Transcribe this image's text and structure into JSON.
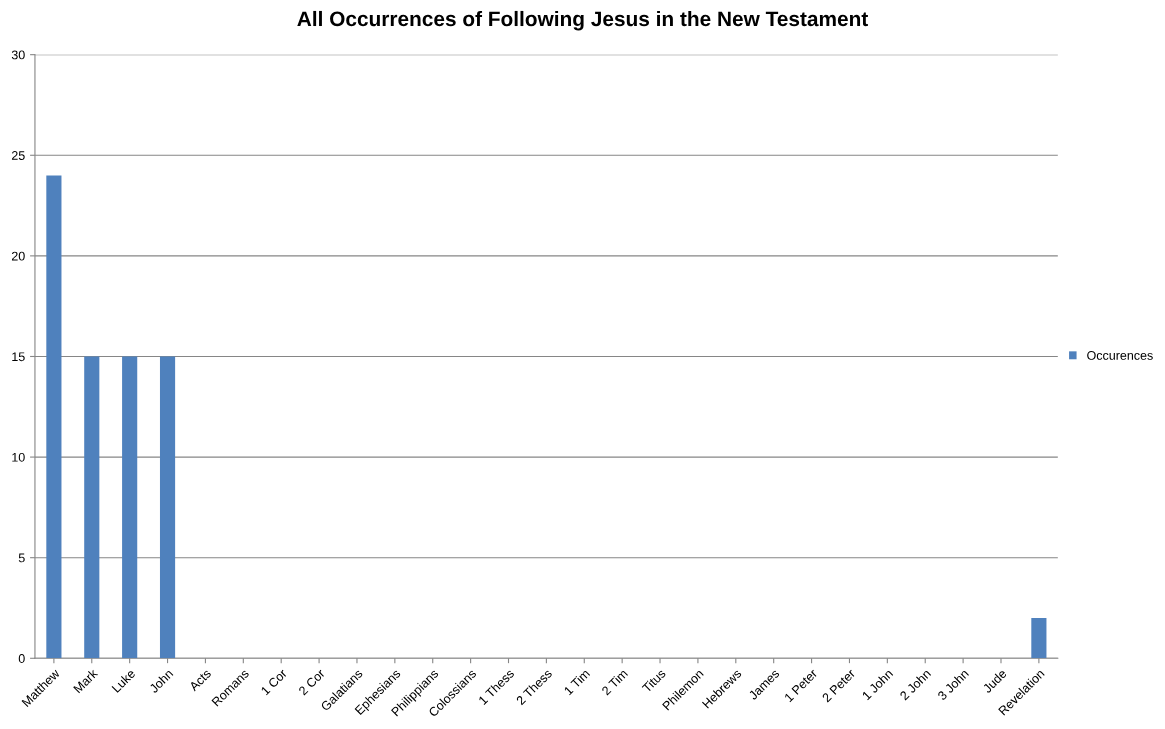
{
  "chart_data": {
    "type": "bar",
    "title": "All Occurrences of Following Jesus in the New Testament",
    "categories": [
      "Matthew",
      "Mark",
      "Luke",
      "John",
      "Acts",
      "Romans",
      "1 Cor",
      "2 Cor",
      "Galatians",
      "Ephesians",
      "Philippians",
      "Colossians",
      "1 Thess",
      "2 Thess",
      "1 Tim",
      "2 Tim",
      "Titus",
      "Philemon",
      "Hebrews",
      "James",
      "1 Peter",
      "2 Peter",
      "1 John",
      "2 John",
      "3 John",
      "Jude",
      "Revelation"
    ],
    "series": [
      {
        "name": "Occurences",
        "color": "#4f81bd",
        "values": [
          24,
          15,
          15,
          15,
          0,
          0,
          0,
          0,
          0,
          0,
          0,
          0,
          0,
          0,
          0,
          0,
          0,
          0,
          0,
          0,
          0,
          0,
          0,
          0,
          0,
          0,
          2
        ]
      }
    ],
    "ylim": [
      0,
      30
    ],
    "yticks": [
      0,
      5,
      10,
      15,
      20,
      25,
      30
    ],
    "grid": "y",
    "legend": "right"
  }
}
